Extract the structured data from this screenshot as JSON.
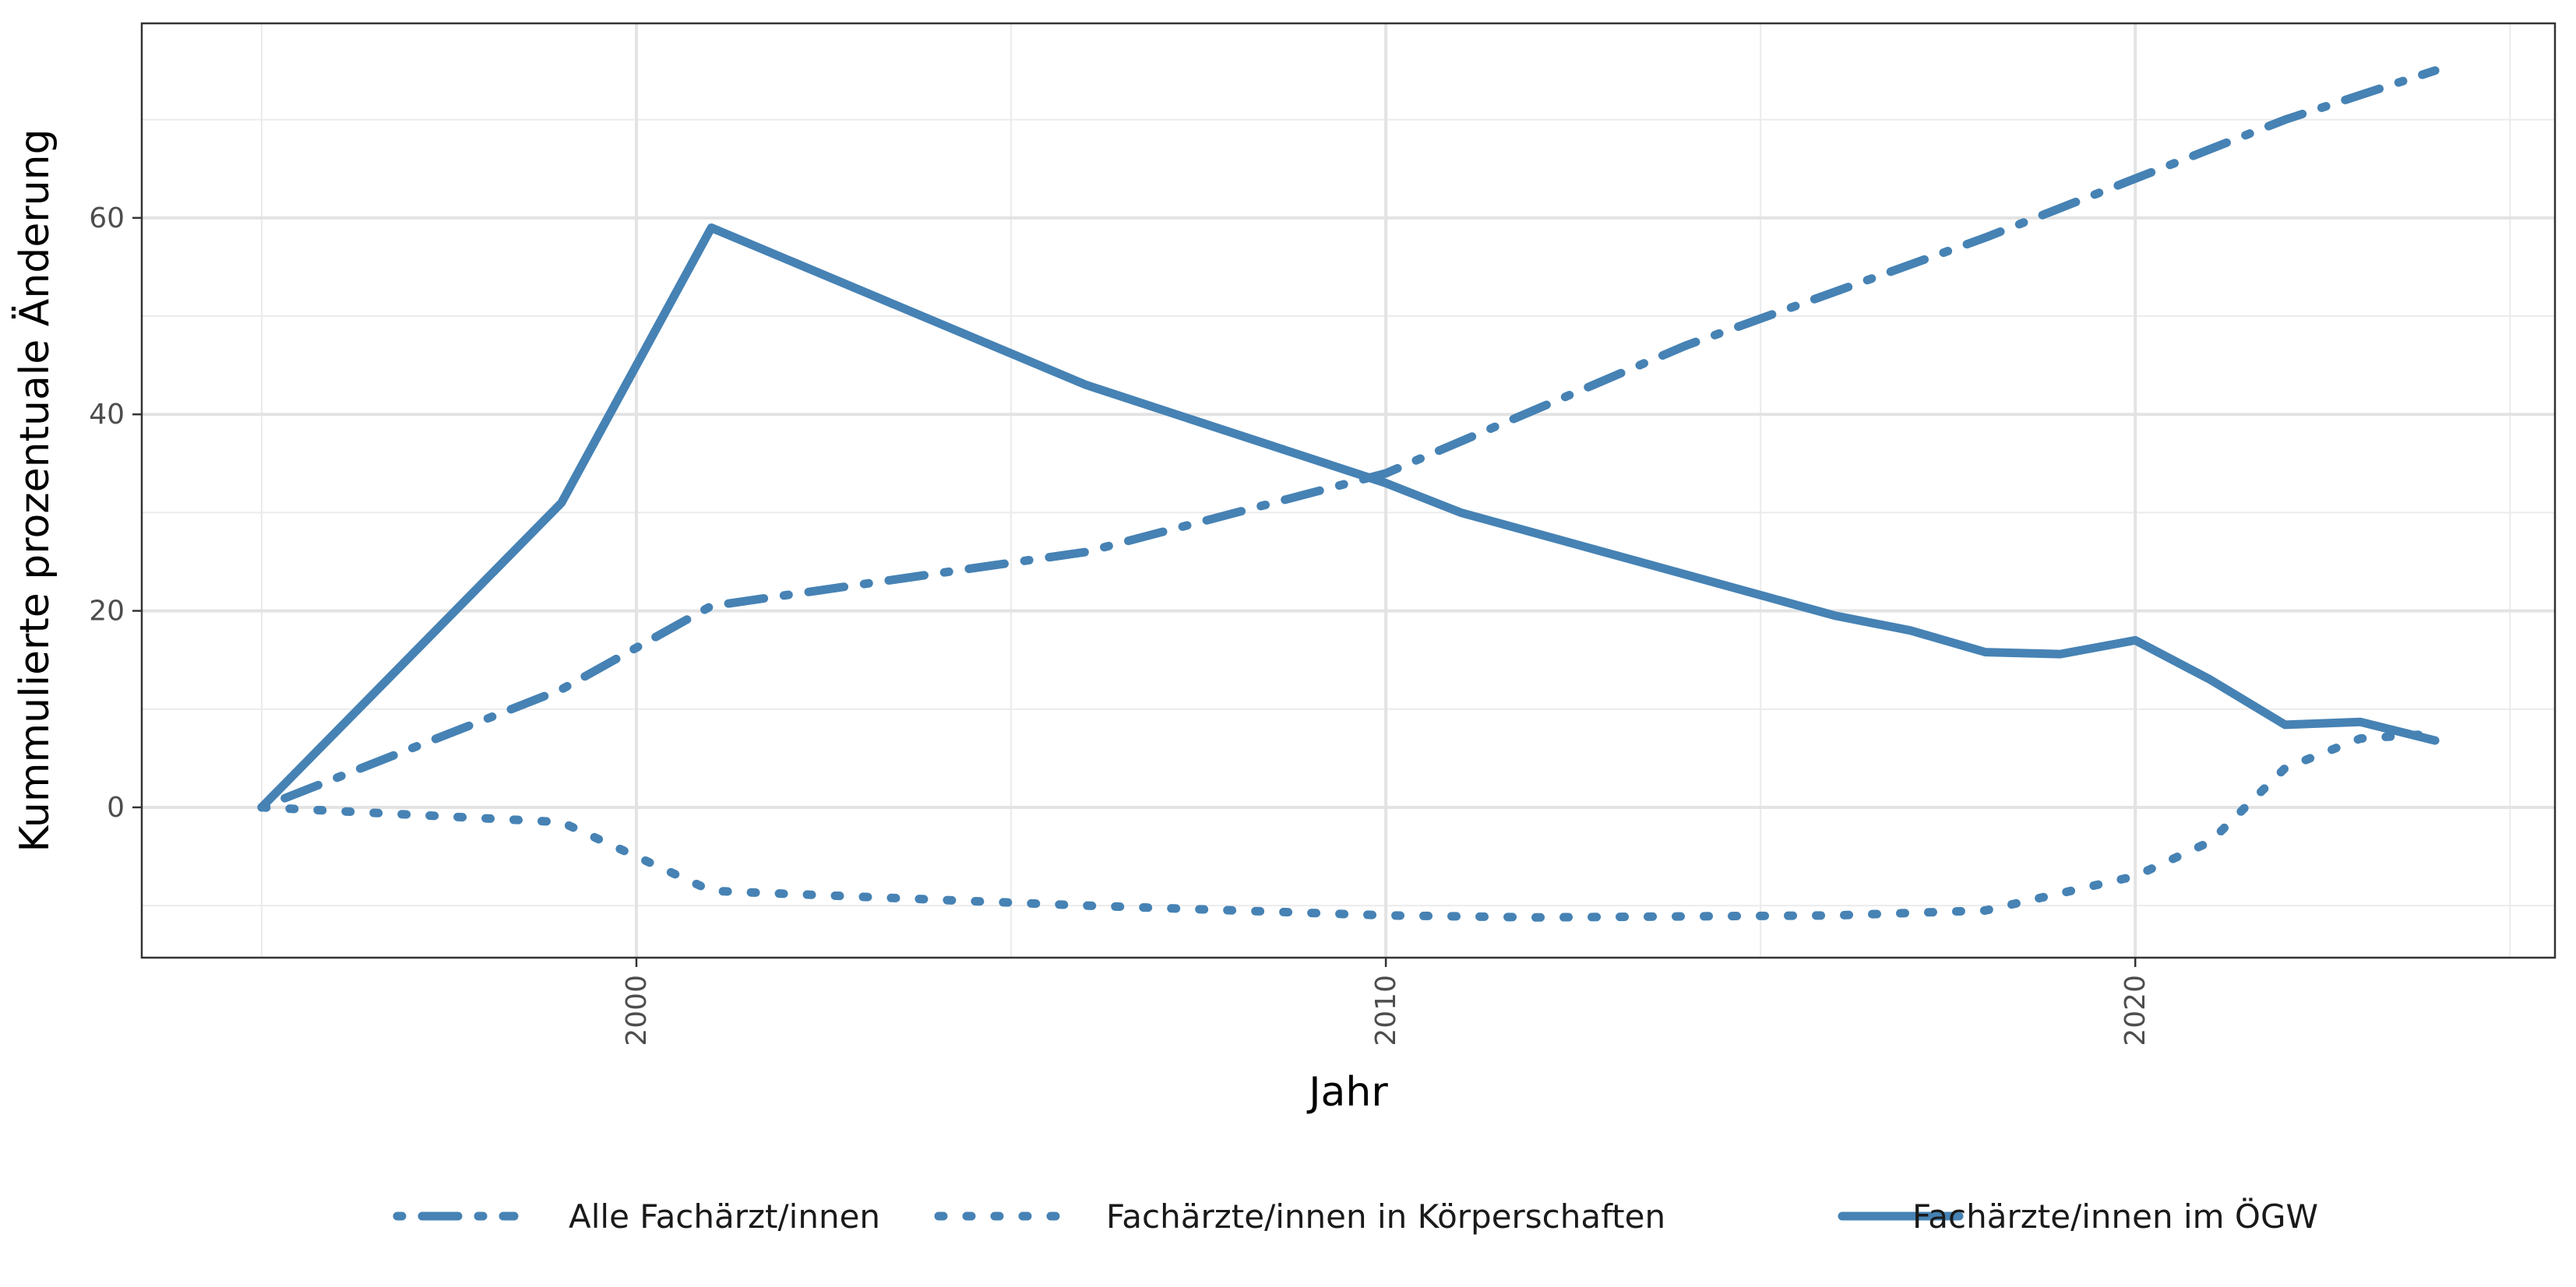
{
  "chart_data": {
    "type": "line",
    "title": "",
    "xlabel": "Jahr",
    "ylabel": "Kummulierte prozentuale Änderung",
    "x_ticks": [
      2000,
      2010,
      2020
    ],
    "y_ticks": [
      0,
      20,
      40,
      60
    ],
    "xlim": [
      1993.4,
      2025.6
    ],
    "ylim": [
      -15.3,
      79.8
    ],
    "grid": true,
    "legend_position": "bottom",
    "color": "#4682B4",
    "series": [
      {
        "name": "Alle Fachärzt/innen",
        "line_style": "dotdash",
        "x": [
          1995,
          1999,
          2001,
          2006,
          2010,
          2014,
          2018,
          2020,
          2022,
          2024
        ],
        "y": [
          0,
          12,
          20.5,
          26,
          34,
          47,
          58,
          64,
          70,
          75
        ]
      },
      {
        "name": "Fachärzte/innen in Körperschaften",
        "line_style": "dotted",
        "x": [
          1995,
          1999,
          2001,
          2006,
          2010,
          2012,
          2016,
          2018,
          2020,
          2021,
          2022,
          2023,
          2024
        ],
        "y": [
          0,
          -1.5,
          -8.5,
          -10,
          -11,
          -11.2,
          -11,
          -10.5,
          -7,
          -3.5,
          4,
          7,
          7.5
        ]
      },
      {
        "name": "Fachärzte/innen im ÖGW",
        "line_style": "solid",
        "x": [
          1995,
          1999,
          2001,
          2006,
          2010,
          2011,
          2016,
          2017,
          2018,
          2019,
          2020,
          2021,
          2022,
          2023,
          2024
        ],
        "y": [
          0,
          31,
          59,
          43,
          33,
          30,
          19.5,
          18,
          15.8,
          15.6,
          17,
          13,
          8.4,
          8.7,
          6.8
        ]
      }
    ]
  }
}
